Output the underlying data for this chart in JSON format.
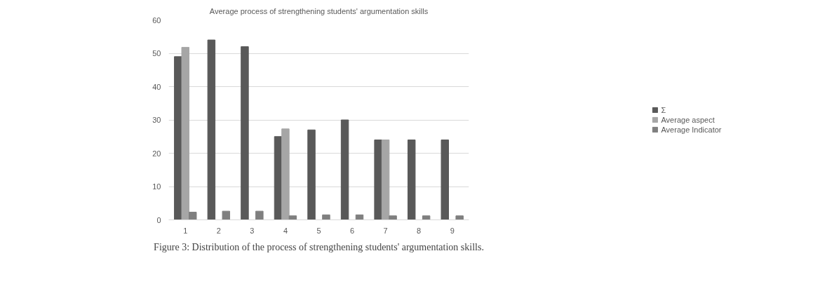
{
  "chart_data": {
    "type": "bar",
    "title": "Average process of strengthening students' argumentation skills",
    "categories": [
      "1",
      "2",
      "3",
      "4",
      "5",
      "6",
      "7",
      "8",
      "9"
    ],
    "series": [
      {
        "name": "Σ",
        "color": "#595959",
        "values": [
          49,
          54,
          52,
          25,
          27,
          30,
          24,
          24,
          24
        ]
      },
      {
        "name": "Average aspect",
        "color": "#a6a6a6",
        "values": [
          51.8,
          null,
          null,
          27.3,
          null,
          null,
          24,
          null,
          null
        ]
      },
      {
        "name": "Average Indicator",
        "color": "#7f7f7f",
        "values": [
          2.3,
          2.6,
          2.6,
          1.2,
          1.5,
          1.5,
          1.2,
          1.2,
          1.2
        ]
      }
    ],
    "ylim": [
      0,
      60
    ],
    "yticks": [
      0,
      10,
      20,
      30,
      40,
      50,
      60
    ],
    "grid": "y",
    "legend": "right",
    "annotations": [
      "Figure 3: Distribution of the process of strengthening students' argumentation skills."
    ]
  }
}
